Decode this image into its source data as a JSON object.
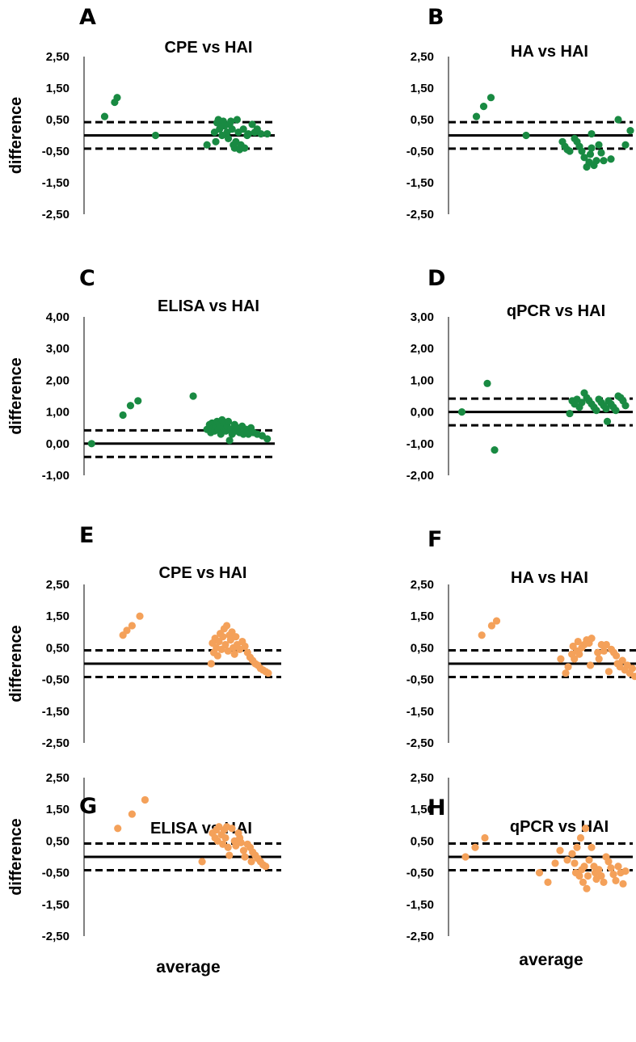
{
  "figure": {
    "x_label": "average",
    "y_label": "difference"
  },
  "colors": {
    "green": "#198a42",
    "orange": "#f4a15a",
    "line": "#000000"
  },
  "chart_data": [
    {
      "panel": "A",
      "title": "CPE vs HAI",
      "type": "scatter",
      "ylabel": "difference",
      "xlabel": "",
      "ylim": [
        -2.5,
        2.5
      ],
      "yticks": [
        "2,50",
        "1,50",
        "0,50",
        "-0,50",
        "-1,50",
        "-2,50"
      ],
      "mean_line": 0.0,
      "limits_of_agreement": [
        0.42,
        -0.42
      ],
      "color": "green",
      "points": [
        [
          0.82,
          0.6
        ],
        [
          1.22,
          1.05
        ],
        [
          1.32,
          1.2
        ],
        [
          2.85,
          0.0
        ],
        [
          4.9,
          -0.3
        ],
        [
          5.2,
          0.1
        ],
        [
          5.25,
          -0.2
        ],
        [
          5.3,
          0.4
        ],
        [
          5.35,
          0.5
        ],
        [
          5.4,
          0.2
        ],
        [
          5.45,
          0.3
        ],
        [
          5.5,
          0.0
        ],
        [
          5.55,
          0.45
        ],
        [
          5.6,
          0.3
        ],
        [
          5.7,
          0.1
        ],
        [
          5.75,
          -0.1
        ],
        [
          5.8,
          0.35
        ],
        [
          5.85,
          0.45
        ],
        [
          5.9,
          0.2
        ],
        [
          5.95,
          -0.3
        ],
        [
          6.0,
          -0.4
        ],
        [
          6.05,
          -0.2
        ],
        [
          6.1,
          0.5
        ],
        [
          6.15,
          0.1
        ],
        [
          6.2,
          -0.45
        ],
        [
          6.25,
          -0.3
        ],
        [
          6.35,
          0.2
        ],
        [
          6.4,
          -0.4
        ],
        [
          6.5,
          0.0
        ],
        [
          6.55,
          0.05
        ],
        [
          6.7,
          0.35
        ],
        [
          6.8,
          0.1
        ],
        [
          6.9,
          0.2
        ],
        [
          7.05,
          0.05
        ],
        [
          7.3,
          0.05
        ]
      ]
    },
    {
      "panel": "B",
      "title": "HA vs HAI",
      "type": "scatter",
      "ylabel": "",
      "xlabel": "",
      "ylim": [
        -2.5,
        2.5
      ],
      "yticks": [
        "2,50",
        "1,50",
        "0,50",
        "-0,50",
        "-1,50",
        "-2,50"
      ],
      "mean_line": 0.0,
      "limits_of_agreement": [
        0.42,
        -0.42
      ],
      "color": "green",
      "points": [
        [
          1.15,
          0.6
        ],
        [
          1.45,
          0.92
        ],
        [
          1.75,
          1.2
        ],
        [
          3.2,
          0.0
        ],
        [
          4.7,
          -0.2
        ],
        [
          4.8,
          -0.35
        ],
        [
          4.9,
          -0.45
        ],
        [
          5.0,
          -0.5
        ],
        [
          5.2,
          -0.1
        ],
        [
          5.3,
          -0.2
        ],
        [
          5.4,
          -0.35
        ],
        [
          5.5,
          -0.5
        ],
        [
          5.6,
          -0.7
        ],
        [
          5.7,
          -1.0
        ],
        [
          5.8,
          -0.85
        ],
        [
          5.85,
          -0.6
        ],
        [
          5.9,
          -0.4
        ],
        [
          6.0,
          -0.95
        ],
        [
          6.1,
          -0.8
        ],
        [
          6.2,
          -0.3
        ],
        [
          6.3,
          -0.55
        ],
        [
          6.4,
          -0.8
        ],
        [
          6.7,
          -0.75
        ],
        [
          5.9,
          0.05
        ],
        [
          7.0,
          0.5
        ],
        [
          7.3,
          -0.3
        ],
        [
          7.5,
          0.15
        ]
      ]
    },
    {
      "panel": "C",
      "title": "ELISA vs HAI",
      "type": "scatter",
      "ylabel": "difference",
      "xlabel": "",
      "ylim": [
        -1.0,
        4.0
      ],
      "yticks": [
        "4,00",
        "3,00",
        "2,00",
        "1,00",
        "0,00",
        "-1,00"
      ],
      "mean_line": 0.0,
      "limits_of_agreement": [
        0.42,
        -0.42
      ],
      "color": "green",
      "points": [
        [
          0.3,
          0.0
        ],
        [
          1.55,
          0.9
        ],
        [
          1.85,
          1.2
        ],
        [
          2.15,
          1.35
        ],
        [
          4.35,
          1.5
        ],
        [
          4.9,
          0.45
        ],
        [
          5.0,
          0.6
        ],
        [
          5.05,
          0.35
        ],
        [
          5.1,
          0.65
        ],
        [
          5.15,
          0.5
        ],
        [
          5.2,
          0.4
        ],
        [
          5.25,
          0.55
        ],
        [
          5.3,
          0.7
        ],
        [
          5.35,
          0.45
        ],
        [
          5.4,
          0.6
        ],
        [
          5.45,
          0.3
        ],
        [
          5.5,
          0.75
        ],
        [
          5.55,
          0.5
        ],
        [
          5.6,
          0.65
        ],
        [
          5.65,
          0.4
        ],
        [
          5.7,
          0.55
        ],
        [
          5.75,
          0.7
        ],
        [
          5.8,
          0.1
        ],
        [
          5.85,
          0.45
        ],
        [
          5.9,
          0.3
        ],
        [
          6.0,
          0.6
        ],
        [
          6.05,
          0.4
        ],
        [
          6.1,
          0.5
        ],
        [
          6.2,
          0.35
        ],
        [
          6.3,
          0.55
        ],
        [
          6.35,
          0.3
        ],
        [
          6.45,
          0.45
        ],
        [
          6.55,
          0.3
        ],
        [
          6.65,
          0.5
        ],
        [
          6.75,
          0.35
        ],
        [
          6.9,
          0.3
        ],
        [
          7.1,
          0.25
        ],
        [
          7.3,
          0.15
        ]
      ]
    },
    {
      "panel": "D",
      "title": "qPCR vs HAI",
      "type": "scatter",
      "ylabel": "",
      "xlabel": "",
      "ylim": [
        -2.0,
        3.0
      ],
      "yticks": [
        "3,00",
        "2,00",
        "1,00",
        "0,00",
        "-1,00",
        "-2,00"
      ],
      "mean_line": 0.0,
      "limits_of_agreement": [
        0.42,
        -0.42
      ],
      "color": "green",
      "points": [
        [
          0.55,
          0.0
        ],
        [
          1.6,
          0.9
        ],
        [
          1.9,
          -1.2
        ],
        [
          5.0,
          -0.05
        ],
        [
          5.1,
          0.35
        ],
        [
          5.2,
          0.25
        ],
        [
          5.3,
          0.4
        ],
        [
          5.4,
          0.15
        ],
        [
          5.5,
          0.3
        ],
        [
          5.6,
          0.6
        ],
        [
          5.7,
          0.45
        ],
        [
          5.8,
          0.35
        ],
        [
          5.9,
          0.25
        ],
        [
          6.0,
          0.15
        ],
        [
          6.1,
          0.05
        ],
        [
          6.2,
          0.4
        ],
        [
          6.3,
          0.3
        ],
        [
          6.4,
          0.2
        ],
        [
          6.5,
          0.1
        ],
        [
          6.55,
          -0.3
        ],
        [
          6.6,
          0.35
        ],
        [
          6.7,
          0.25
        ],
        [
          6.8,
          0.15
        ],
        [
          6.9,
          0.05
        ],
        [
          7.0,
          0.5
        ],
        [
          7.1,
          0.45
        ],
        [
          7.2,
          0.35
        ],
        [
          7.3,
          0.2
        ]
      ]
    },
    {
      "panel": "E",
      "title": "CPE vs HAI",
      "type": "scatter",
      "ylabel": "difference",
      "xlabel": "",
      "ylim": [
        -2.5,
        2.5
      ],
      "yticks": [
        "2,50",
        "1,50",
        "0,50",
        "-0,50",
        "-1,50",
        "-2,50"
      ],
      "mean_line": 0.0,
      "limits_of_agreement": [
        0.42,
        -0.42
      ],
      "color": "orange",
      "points": [
        [
          1.5,
          0.9
        ],
        [
          1.65,
          1.05
        ],
        [
          1.85,
          1.2
        ],
        [
          2.15,
          1.5
        ],
        [
          4.9,
          0.0
        ],
        [
          4.95,
          0.65
        ],
        [
          5.0,
          0.35
        ],
        [
          5.05,
          0.8
        ],
        [
          5.1,
          0.5
        ],
        [
          5.15,
          0.25
        ],
        [
          5.2,
          0.7
        ],
        [
          5.25,
          0.95
        ],
        [
          5.3,
          0.45
        ],
        [
          5.35,
          0.85
        ],
        [
          5.4,
          1.1
        ],
        [
          5.45,
          0.6
        ],
        [
          5.5,
          1.2
        ],
        [
          5.55,
          0.4
        ],
        [
          5.6,
          0.9
        ],
        [
          5.65,
          0.75
        ],
        [
          5.7,
          1.0
        ],
        [
          5.75,
          0.5
        ],
        [
          5.8,
          0.3
        ],
        [
          5.85,
          0.85
        ],
        [
          5.9,
          0.6
        ],
        [
          6.0,
          0.45
        ],
        [
          6.1,
          0.7
        ],
        [
          6.2,
          0.55
        ],
        [
          6.3,
          0.35
        ],
        [
          6.4,
          0.2
        ],
        [
          6.5,
          0.1
        ],
        [
          6.6,
          0.0
        ],
        [
          6.7,
          -0.05
        ],
        [
          6.8,
          -0.15
        ],
        [
          6.9,
          -0.2
        ],
        [
          7.0,
          -0.25
        ],
        [
          7.1,
          -0.3
        ]
      ]
    },
    {
      "panel": "F",
      "title": "HA vs HAI",
      "type": "scatter",
      "ylabel": "",
      "xlabel": "",
      "ylim": [
        -2.5,
        2.5
      ],
      "yticks": [
        "2,50",
        "1,50",
        "0,50",
        "-0,50",
        "-1,50",
        "-2,50"
      ],
      "mean_line": 0.0,
      "limits_of_agreement": [
        0.42,
        -0.42
      ],
      "color": "orange",
      "points": [
        [
          1.35,
          0.9
        ],
        [
          1.75,
          1.2
        ],
        [
          1.95,
          1.35
        ],
        [
          4.55,
          0.15
        ],
        [
          4.75,
          -0.3
        ],
        [
          4.85,
          -0.1
        ],
        [
          5.0,
          0.3
        ],
        [
          5.05,
          0.55
        ],
        [
          5.1,
          0.15
        ],
        [
          5.2,
          0.4
        ],
        [
          5.25,
          0.7
        ],
        [
          5.3,
          0.3
        ],
        [
          5.4,
          0.5
        ],
        [
          5.5,
          0.6
        ],
        [
          5.6,
          0.75
        ],
        [
          5.7,
          0.65
        ],
        [
          5.8,
          0.8
        ],
        [
          5.75,
          -0.05
        ],
        [
          6.05,
          0.35
        ],
        [
          6.1,
          0.15
        ],
        [
          6.2,
          0.6
        ],
        [
          6.3,
          0.4
        ],
        [
          6.4,
          0.6
        ],
        [
          6.5,
          -0.25
        ],
        [
          6.6,
          0.45
        ],
        [
          6.7,
          0.35
        ],
        [
          6.8,
          0.25
        ],
        [
          6.85,
          0.0
        ],
        [
          6.95,
          -0.1
        ],
        [
          7.05,
          0.1
        ],
        [
          7.15,
          -0.2
        ],
        [
          7.25,
          -0.05
        ],
        [
          7.35,
          -0.3
        ],
        [
          7.45,
          -0.15
        ],
        [
          7.55,
          -0.4
        ]
      ]
    },
    {
      "panel": "G",
      "title": "ELISA vs HAI",
      "type": "scatter",
      "ylabel": "difference",
      "xlabel": "average",
      "ylim": [
        -2.5,
        2.5
      ],
      "yticks": [
        "2,50",
        "1,50",
        "0,50",
        "-0,50",
        "-1,50",
        "-2,50"
      ],
      "mean_line": 0.0,
      "limits_of_agreement": [
        0.42,
        -0.42
      ],
      "color": "orange",
      "points": [
        [
          1.3,
          0.9
        ],
        [
          1.85,
          1.35
        ],
        [
          2.35,
          1.8
        ],
        [
          4.55,
          -0.15
        ],
        [
          4.95,
          0.75
        ],
        [
          5.05,
          0.6
        ],
        [
          5.1,
          0.85
        ],
        [
          5.15,
          0.5
        ],
        [
          5.2,
          0.95
        ],
        [
          5.3,
          0.7
        ],
        [
          5.35,
          0.4
        ],
        [
          5.4,
          0.85
        ],
        [
          5.45,
          0.6
        ],
        [
          5.5,
          0.95
        ],
        [
          5.55,
          0.3
        ],
        [
          5.6,
          0.05
        ],
        [
          5.7,
          0.9
        ],
        [
          5.8,
          0.5
        ],
        [
          5.85,
          0.35
        ],
        [
          5.95,
          0.75
        ],
        [
          6.0,
          0.6
        ],
        [
          6.05,
          0.45
        ],
        [
          6.15,
          0.2
        ],
        [
          6.2,
          0.0
        ],
        [
          6.3,
          0.4
        ],
        [
          6.4,
          0.3
        ],
        [
          6.45,
          -0.15
        ],
        [
          6.5,
          0.15
        ],
        [
          6.6,
          0.05
        ],
        [
          6.7,
          -0.05
        ],
        [
          6.8,
          -0.15
        ],
        [
          6.9,
          -0.25
        ],
        [
          7.0,
          -0.3
        ]
      ]
    },
    {
      "panel": "H",
      "title": "qPCR vs HAI",
      "type": "scatter",
      "ylabel": "",
      "xlabel": "average",
      "ylim": [
        -2.5,
        2.5
      ],
      "yticks": [
        "2,50",
        "1,50",
        "0,50",
        "-0,50",
        "-1,50",
        "-2,50"
      ],
      "mean_line": 0.0,
      "limits_of_agreement": [
        0.42,
        -0.42
      ],
      "color": "orange",
      "points": [
        [
          0.7,
          0.0
        ],
        [
          1.1,
          0.3
        ],
        [
          1.5,
          0.6
        ],
        [
          3.75,
          -0.5
        ],
        [
          4.1,
          -0.8
        ],
        [
          4.4,
          -0.2
        ],
        [
          4.6,
          0.2
        ],
        [
          4.9,
          -0.1
        ],
        [
          5.1,
          0.1
        ],
        [
          5.2,
          -0.2
        ],
        [
          5.25,
          -0.5
        ],
        [
          5.3,
          0.3
        ],
        [
          5.4,
          -0.6
        ],
        [
          5.45,
          0.6
        ],
        [
          5.5,
          -0.4
        ],
        [
          5.55,
          -0.8
        ],
        [
          5.6,
          -0.3
        ],
        [
          5.65,
          0.9
        ],
        [
          5.7,
          -1.0
        ],
        [
          5.75,
          -0.6
        ],
        [
          5.8,
          -0.1
        ],
        [
          5.9,
          0.3
        ],
        [
          6.0,
          -0.3
        ],
        [
          6.05,
          -0.5
        ],
        [
          6.1,
          -0.7
        ],
        [
          6.2,
          -0.4
        ],
        [
          6.3,
          -0.6
        ],
        [
          6.4,
          -0.8
        ],
        [
          6.5,
          0.0
        ],
        [
          6.6,
          -0.15
        ],
        [
          6.7,
          -0.35
        ],
        [
          6.8,
          -0.55
        ],
        [
          6.9,
          -0.75
        ],
        [
          7.0,
          -0.3
        ],
        [
          7.1,
          -0.5
        ],
        [
          7.2,
          -0.85
        ],
        [
          7.3,
          -0.45
        ]
      ]
    }
  ]
}
